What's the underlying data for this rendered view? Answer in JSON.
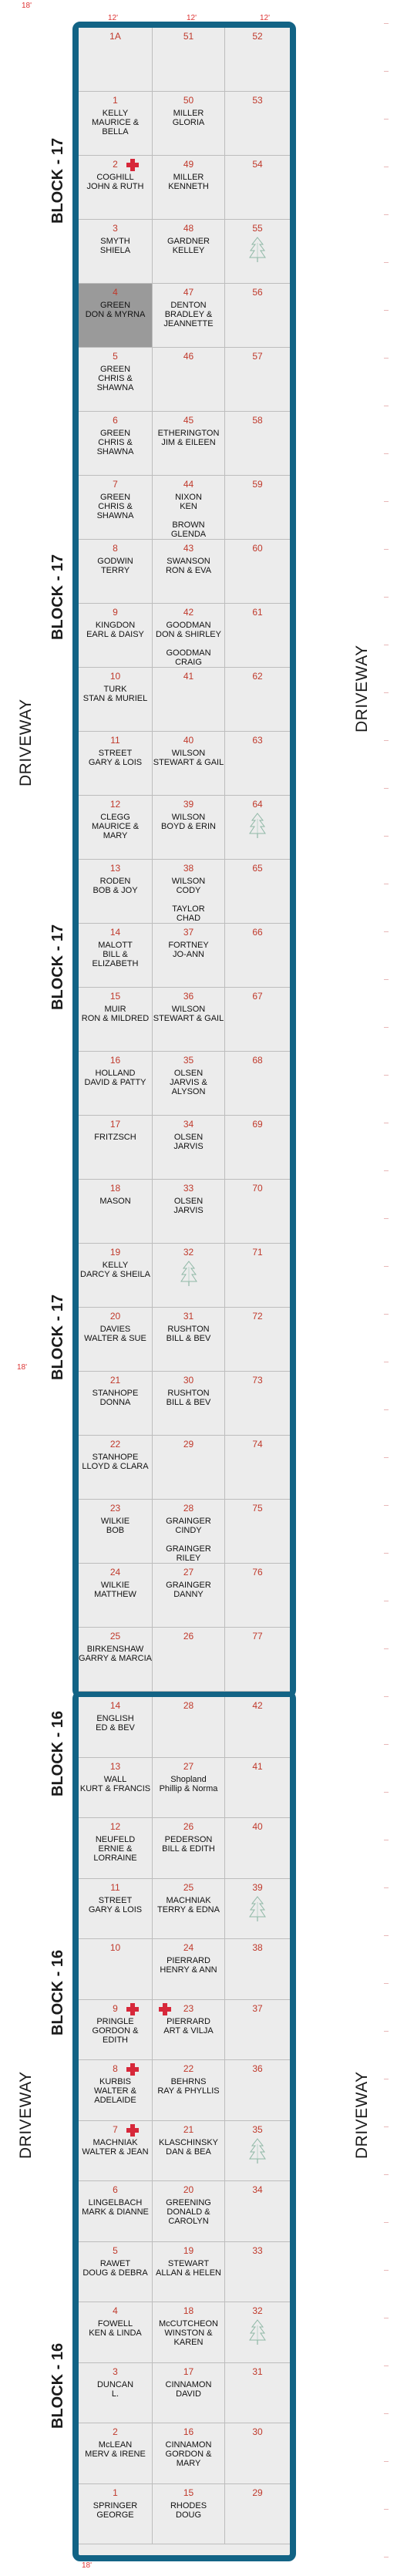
{
  "labels": {
    "block17": "BLOCK - 17",
    "block16": "BLOCK - 16",
    "driveway": "DRIVEWAY",
    "dim_left": "18'",
    "dim_col": "12'",
    "dim_bottom": "18'"
  },
  "block17": {
    "rows": [
      {
        "l": {
          "num": "1A",
          "names": []
        },
        "m": {
          "num": "51",
          "names": []
        },
        "r": {
          "num": "52"
        }
      },
      {
        "l": {
          "num": "1",
          "names": [
            "KELLY",
            "MAURICE & BELLA"
          ]
        },
        "m": {
          "num": "50",
          "names": [
            "MILLER",
            "GLORIA"
          ]
        },
        "r": {
          "num": "53"
        }
      },
      {
        "l": {
          "num": "2",
          "names": [
            "COGHILL",
            "JOHN & RUTH"
          ],
          "cross": true
        },
        "m": {
          "num": "49",
          "names": [
            "MILLER",
            "KENNETH"
          ]
        },
        "r": {
          "num": "54"
        }
      },
      {
        "l": {
          "num": "3",
          "names": [
            "SMYTH",
            "SHIELA"
          ]
        },
        "m": {
          "num": "48",
          "names": [
            "GARDNER",
            "KELLEY"
          ]
        },
        "r": {
          "num": "55",
          "tree": true
        }
      },
      {
        "l": {
          "num": "4",
          "names": [
            "GREEN",
            "DON & MYRNA"
          ],
          "sel": true
        },
        "m": {
          "num": "47",
          "names": [
            "DENTON",
            "BRADLEY &",
            "JEANNETTE"
          ]
        },
        "r": {
          "num": "56"
        }
      },
      {
        "l": {
          "num": "5",
          "names": [
            "GREEN",
            "CHRIS & SHAWNA"
          ]
        },
        "m": {
          "num": "46",
          "names": []
        },
        "r": {
          "num": "57"
        }
      },
      {
        "l": {
          "num": "6",
          "names": [
            "GREEN",
            "CHRIS & SHAWNA"
          ]
        },
        "m": {
          "num": "45",
          "names": [
            "ETHERINGTON",
            "JIM & EILEEN"
          ]
        },
        "r": {
          "num": "58"
        }
      },
      {
        "l": {
          "num": "7",
          "names": [
            "GREEN",
            "CHRIS & SHAWNA"
          ]
        },
        "m": {
          "num": "44",
          "names": [
            "NIXON",
            "KEN",
            "",
            "BROWN",
            "GLENDA"
          ]
        },
        "r": {
          "num": "59"
        }
      },
      {
        "l": {
          "num": "8",
          "names": [
            "GODWIN",
            "TERRY"
          ]
        },
        "m": {
          "num": "43",
          "names": [
            "SWANSON",
            "RON & EVA"
          ]
        },
        "r": {
          "num": "60"
        }
      },
      {
        "l": {
          "num": "9",
          "names": [
            "KINGDON",
            "EARL & DAISY"
          ]
        },
        "m": {
          "num": "42",
          "names": [
            "GOODMAN",
            "DON & SHIRLEY",
            "",
            "GOODMAN",
            "CRAIG"
          ]
        },
        "r": {
          "num": "61"
        }
      },
      {
        "l": {
          "num": "10",
          "names": [
            "TURK",
            "STAN & MURIEL"
          ]
        },
        "m": {
          "num": "41",
          "names": []
        },
        "r": {
          "num": "62"
        }
      },
      {
        "l": {
          "num": "11",
          "names": [
            "STREET",
            "GARY & LOIS"
          ]
        },
        "m": {
          "num": "40",
          "names": [
            "WILSON",
            "STEWART & GAIL"
          ]
        },
        "r": {
          "num": "63"
        }
      },
      {
        "l": {
          "num": "12",
          "names": [
            "CLEGG",
            "MAURICE & MARY"
          ]
        },
        "m": {
          "num": "39",
          "names": [
            "WILSON",
            "BOYD & ERIN"
          ]
        },
        "r": {
          "num": "64",
          "tree": true
        }
      },
      {
        "l": {
          "num": "13",
          "names": [
            "RODEN",
            "BOB & JOY"
          ]
        },
        "m": {
          "num": "38",
          "names": [
            "WILSON",
            "CODY",
            "",
            "TAYLOR",
            "CHAD"
          ]
        },
        "r": {
          "num": "65"
        }
      },
      {
        "l": {
          "num": "14",
          "names": [
            "MALOTT",
            "BILL & ELIZABETH"
          ]
        },
        "m": {
          "num": "37",
          "names": [
            "FORTNEY",
            "JO-ANN"
          ]
        },
        "r": {
          "num": "66"
        }
      },
      {
        "l": {
          "num": "15",
          "names": [
            "MUIR",
            "RON & MILDRED"
          ]
        },
        "m": {
          "num": "36",
          "names": [
            "WILSON",
            "STEWART & GAIL"
          ]
        },
        "r": {
          "num": "67"
        }
      },
      {
        "l": {
          "num": "16",
          "names": [
            "HOLLAND",
            "DAVID & PATTY"
          ]
        },
        "m": {
          "num": "35",
          "names": [
            "OLSEN",
            "JARVIS & ALYSON"
          ]
        },
        "r": {
          "num": "68"
        }
      },
      {
        "l": {
          "num": "17",
          "names": [
            "FRITZSCH"
          ]
        },
        "m": {
          "num": "34",
          "names": [
            "OLSEN",
            "JARVIS"
          ]
        },
        "r": {
          "num": "69"
        }
      },
      {
        "l": {
          "num": "18",
          "names": [
            "MASON"
          ]
        },
        "m": {
          "num": "33",
          "names": [
            "OLSEN",
            "JARVIS"
          ]
        },
        "r": {
          "num": "70"
        }
      },
      {
        "l": {
          "num": "19",
          "names": [
            "KELLY",
            "DARCY & SHEILA"
          ]
        },
        "m": {
          "num": "32",
          "names": [],
          "tree": true
        },
        "r": {
          "num": "71"
        }
      },
      {
        "l": {
          "num": "20",
          "names": [
            "DAVIES",
            "WALTER & SUE"
          ]
        },
        "m": {
          "num": "31",
          "names": [
            "RUSHTON",
            "BILL & BEV"
          ]
        },
        "r": {
          "num": "72"
        }
      },
      {
        "l": {
          "num": "21",
          "names": [
            "STANHOPE",
            "DONNA"
          ]
        },
        "m": {
          "num": "30",
          "names": [
            "RUSHTON",
            "BILL & BEV"
          ]
        },
        "r": {
          "num": "73"
        }
      },
      {
        "l": {
          "num": "22",
          "names": [
            "STANHOPE",
            "LLOYD & CLARA"
          ]
        },
        "m": {
          "num": "29",
          "names": []
        },
        "r": {
          "num": "74"
        }
      },
      {
        "l": {
          "num": "23",
          "names": [
            "WILKIE",
            "BOB"
          ]
        },
        "m": {
          "num": "28",
          "names": [
            "GRAINGER",
            "CINDY",
            "",
            "GRAINGER",
            "RILEY"
          ]
        },
        "r": {
          "num": "75"
        }
      },
      {
        "l": {
          "num": "24",
          "names": [
            "WILKIE",
            "MATTHEW"
          ]
        },
        "m": {
          "num": "27",
          "names": [
            "GRAINGER",
            "DANNY"
          ]
        },
        "r": {
          "num": "76"
        }
      },
      {
        "l": {
          "num": "25",
          "names": [
            "BIRKENSHAW",
            "GARRY & MARCIA"
          ]
        },
        "m": {
          "num": "26",
          "names": []
        },
        "r": {
          "num": "77"
        }
      }
    ]
  },
  "block16": {
    "rows": [
      {
        "l": {
          "num": "14",
          "names": [
            "ENGLISH",
            "ED & BEV"
          ]
        },
        "m": {
          "num": "28",
          "names": []
        },
        "r": {
          "num": "42"
        }
      },
      {
        "l": {
          "num": "13",
          "names": [
            "WALL",
            "KURT & FRANCIS"
          ]
        },
        "m": {
          "num": "27",
          "names": [
            "Shopland",
            "Phillip & Norma"
          ]
        },
        "r": {
          "num": "41"
        }
      },
      {
        "l": {
          "num": "12",
          "names": [
            "NEUFELD",
            "ERNIE & LORRAINE"
          ]
        },
        "m": {
          "num": "26",
          "names": [
            "PEDERSON",
            "BILL & EDITH"
          ]
        },
        "r": {
          "num": "40"
        }
      },
      {
        "l": {
          "num": "11",
          "names": [
            "STREET",
            "GARY & LOIS"
          ]
        },
        "m": {
          "num": "25",
          "names": [
            "MACHNIAK",
            "TERRY & EDNA"
          ]
        },
        "r": {
          "num": "39",
          "tree": true
        }
      },
      {
        "l": {
          "num": "10",
          "names": []
        },
        "m": {
          "num": "24",
          "names": [
            "PIERRARD",
            "HENRY & ANN"
          ]
        },
        "r": {
          "num": "38"
        }
      },
      {
        "l": {
          "num": "9",
          "names": [
            "PRINGLE",
            "GORDON & EDITH"
          ],
          "cross": true
        },
        "m": {
          "num": "23",
          "names": [
            "PIERRARD",
            "ART & VILJA"
          ],
          "cross": true
        },
        "r": {
          "num": "37"
        }
      },
      {
        "l": {
          "num": "8",
          "names": [
            "KURBIS",
            "WALTER &",
            "ADELAIDE"
          ],
          "cross": true
        },
        "m": {
          "num": "22",
          "names": [
            "BEHRNS",
            "RAY & PHYLLIS"
          ]
        },
        "r": {
          "num": "36"
        }
      },
      {
        "l": {
          "num": "7",
          "names": [
            "MACHNIAK",
            "WALTER & JEAN"
          ],
          "cross": true
        },
        "m": {
          "num": "21",
          "names": [
            "KLASCHINSKY",
            "DAN & BEA"
          ]
        },
        "r": {
          "num": "35",
          "tree": true
        }
      },
      {
        "l": {
          "num": "6",
          "names": [
            "LINGELBACH",
            "MARK & DIANNE"
          ]
        },
        "m": {
          "num": "20",
          "names": [
            "GREENING",
            "DONALD &",
            "CAROLYN"
          ]
        },
        "r": {
          "num": "34"
        }
      },
      {
        "l": {
          "num": "5",
          "names": [
            "RAWET",
            "DOUG & DEBRA"
          ]
        },
        "m": {
          "num": "19",
          "names": [
            "STEWART",
            "ALLAN & HELEN"
          ]
        },
        "r": {
          "num": "33"
        }
      },
      {
        "l": {
          "num": "4",
          "names": [
            "FOWELL",
            "KEN & LINDA"
          ]
        },
        "m": {
          "num": "18",
          "names": [
            "McCUTCHEON",
            "WINSTON & KAREN"
          ]
        },
        "r": {
          "num": "32",
          "tree": true
        }
      },
      {
        "l": {
          "num": "3",
          "names": [
            "DUNCAN",
            "L."
          ]
        },
        "m": {
          "num": "17",
          "names": [
            "CINNAMON",
            "DAVID"
          ]
        },
        "r": {
          "num": "31"
        }
      },
      {
        "l": {
          "num": "2",
          "names": [
            "McLEAN",
            "MERV & IRENE"
          ]
        },
        "m": {
          "num": "16",
          "names": [
            "CINNAMON",
            "GORDON & MARY"
          ]
        },
        "r": {
          "num": "30"
        }
      },
      {
        "l": {
          "num": "1",
          "names": [
            "SPRINGER",
            "GEORGE"
          ]
        },
        "m": {
          "num": "15",
          "names": [
            "RHODES",
            "DOUG"
          ]
        },
        "r": {
          "num": "29"
        }
      }
    ]
  }
}
